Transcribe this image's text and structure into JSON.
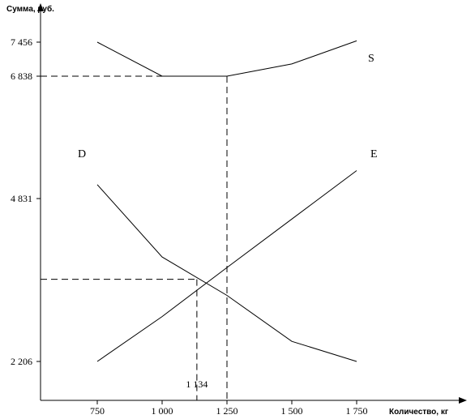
{
  "chart_data": {
    "type": "line",
    "ylabel": "Сумма, руб.",
    "xlabel": "Количество, кг",
    "x_ticks": [
      {
        "value": 750,
        "label": "750"
      },
      {
        "value": 1000,
        "label": "1 000"
      },
      {
        "value": 1250,
        "label": "1 250"
      },
      {
        "value": 1500,
        "label": "1 500"
      },
      {
        "value": 1750,
        "label": "1 750"
      }
    ],
    "y_ticks": [
      {
        "value": 7456,
        "label": "7 456"
      },
      {
        "value": 6838,
        "label": "6 838"
      },
      {
        "value": 4831,
        "label": "4 831"
      },
      {
        "value": 2206,
        "label": "2 206"
      }
    ],
    "series": [
      {
        "name": "S",
        "x": [
          750,
          1000,
          1250,
          1500,
          1750
        ],
        "y": [
          7456,
          6838,
          6838,
          7060,
          7480
        ]
      },
      {
        "name": "D",
        "x": [
          750,
          1000,
          1250,
          1500,
          1750
        ],
        "y": [
          5060,
          3890,
          3270,
          2530,
          2206
        ]
      },
      {
        "name": "E",
        "x": [
          750,
          1000,
          1250,
          1500,
          1750
        ],
        "y": [
          2206,
          2930,
          3720,
          4500,
          5290
        ]
      }
    ],
    "annotations": [
      {
        "label": "1 134",
        "x": 1134,
        "y": 3530
      }
    ],
    "guides": {
      "qty": 1250,
      "price": 6838
    }
  }
}
